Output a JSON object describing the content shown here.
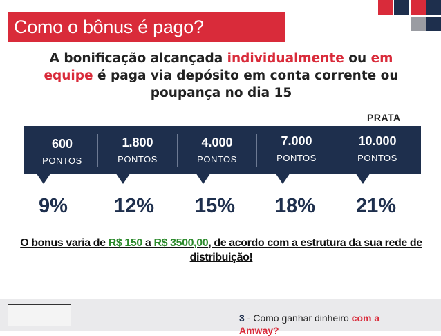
{
  "slide": {
    "title": "Como o bônus é pago?",
    "intro": {
      "part1": "A bonificação alcançada ",
      "highlight1": "individualmente",
      "part2": " ou ",
      "highlight2": "em equipe",
      "part3": " é paga via depósito em conta corrente ou poupança no dia 15"
    },
    "level_label": "PRATA",
    "tiers": [
      {
        "points": "600",
        "unit": "PONTOS",
        "percent": "9%"
      },
      {
        "points": "1.800",
        "unit": "PONTOS",
        "percent": "12%"
      },
      {
        "points": "4.000",
        "unit": "PONTOS",
        "percent": "15%"
      },
      {
        "points": "7.000",
        "unit": "PONTOS",
        "percent": "18%"
      },
      {
        "points": "10.000",
        "unit": "PONTOS",
        "percent": "21%"
      }
    ],
    "note": {
      "part1": "O bonus varia de ",
      "value1": "R$ 150",
      "part2": " a ",
      "value2": "R$ 3500,00",
      "part3": ", de acordo com a estrutura da sua rede de distribuição!"
    }
  },
  "footer": {
    "number": "3",
    "text": " - Como ganhar dinheiro ",
    "highlight": "com a",
    "line2": "Amway?"
  },
  "colors": {
    "accent_red": "#d92b3a",
    "navy": "#1e2f4d",
    "money_green": "#2c8a2c"
  }
}
